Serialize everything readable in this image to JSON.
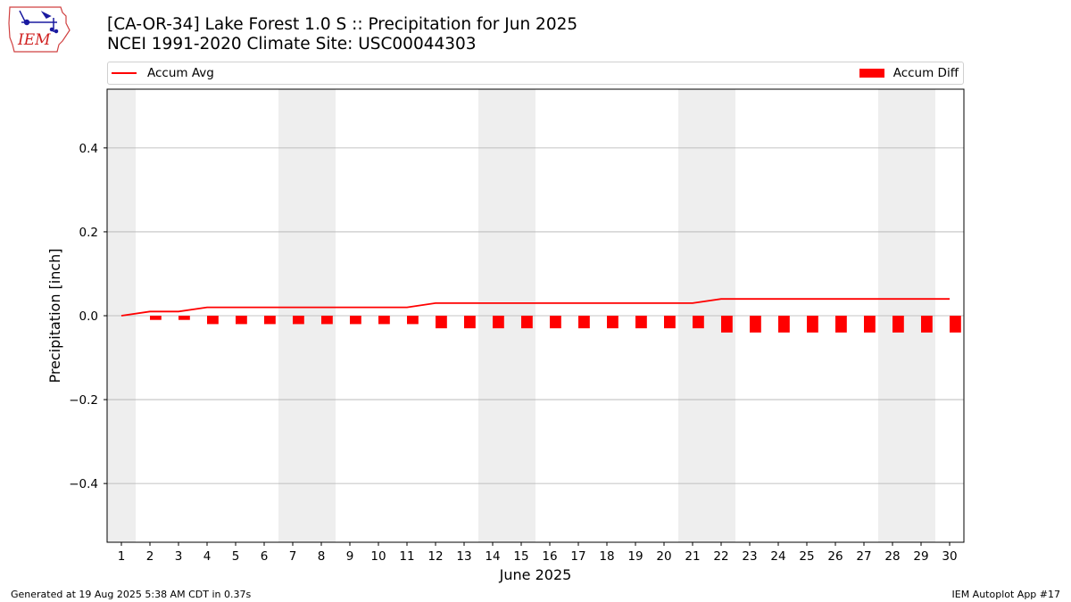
{
  "header": {
    "title_line1": "[CA-OR-34] Lake Forest 1.0 S :: Precipitation for Jun 2025",
    "title_line2": "NCEI 1991-2020 Climate Site: USC00044303",
    "logo_text": "IEM"
  },
  "legend": {
    "line_label": "Accum Avg",
    "bar_label": "Accum Diff"
  },
  "footer": {
    "generated": "Generated at 19 Aug 2025 5:38 AM CDT in 0.37s",
    "app": "IEM Autoplot App #17"
  },
  "colors": {
    "series": "#ff0000",
    "weekend_band": "#eeeeee",
    "grid": "#b0b0b0"
  },
  "chart_data": {
    "type": "bar",
    "xlabel": "June 2025",
    "ylabel": "Precipitation [inch]",
    "ylim": [
      -0.54,
      0.54
    ],
    "yticks": [
      -0.4,
      -0.2,
      0.0,
      0.2,
      0.4
    ],
    "ytick_labels": [
      "−0.4",
      "−0.2",
      "0.0",
      "0.2",
      "0.4"
    ],
    "grid": "horizontal",
    "legend_placement": "top",
    "categories": [
      "1",
      "2",
      "3",
      "4",
      "5",
      "6",
      "7",
      "8",
      "9",
      "10",
      "11",
      "12",
      "13",
      "14",
      "15",
      "16",
      "17",
      "18",
      "19",
      "20",
      "21",
      "22",
      "23",
      "24",
      "25",
      "26",
      "27",
      "28",
      "29",
      "30"
    ],
    "weekend_days": [
      1,
      7,
      8,
      14,
      15,
      21,
      22,
      28,
      29
    ],
    "series": [
      {
        "name": "Accum Avg",
        "type": "line",
        "values": [
          0.0,
          0.01,
          0.01,
          0.02,
          0.02,
          0.02,
          0.02,
          0.02,
          0.02,
          0.02,
          0.02,
          0.03,
          0.03,
          0.03,
          0.03,
          0.03,
          0.03,
          0.03,
          0.03,
          0.03,
          0.03,
          0.04,
          0.04,
          0.04,
          0.04,
          0.04,
          0.04,
          0.04,
          0.04,
          0.04
        ]
      },
      {
        "name": "Accum Diff",
        "type": "bar",
        "values": [
          0.0,
          -0.01,
          -0.01,
          -0.02,
          -0.02,
          -0.02,
          -0.02,
          -0.02,
          -0.02,
          -0.02,
          -0.02,
          -0.03,
          -0.03,
          -0.03,
          -0.03,
          -0.03,
          -0.03,
          -0.03,
          -0.03,
          -0.03,
          -0.03,
          -0.04,
          -0.04,
          -0.04,
          -0.04,
          -0.04,
          -0.04,
          -0.04,
          -0.04,
          -0.04
        ]
      }
    ]
  }
}
